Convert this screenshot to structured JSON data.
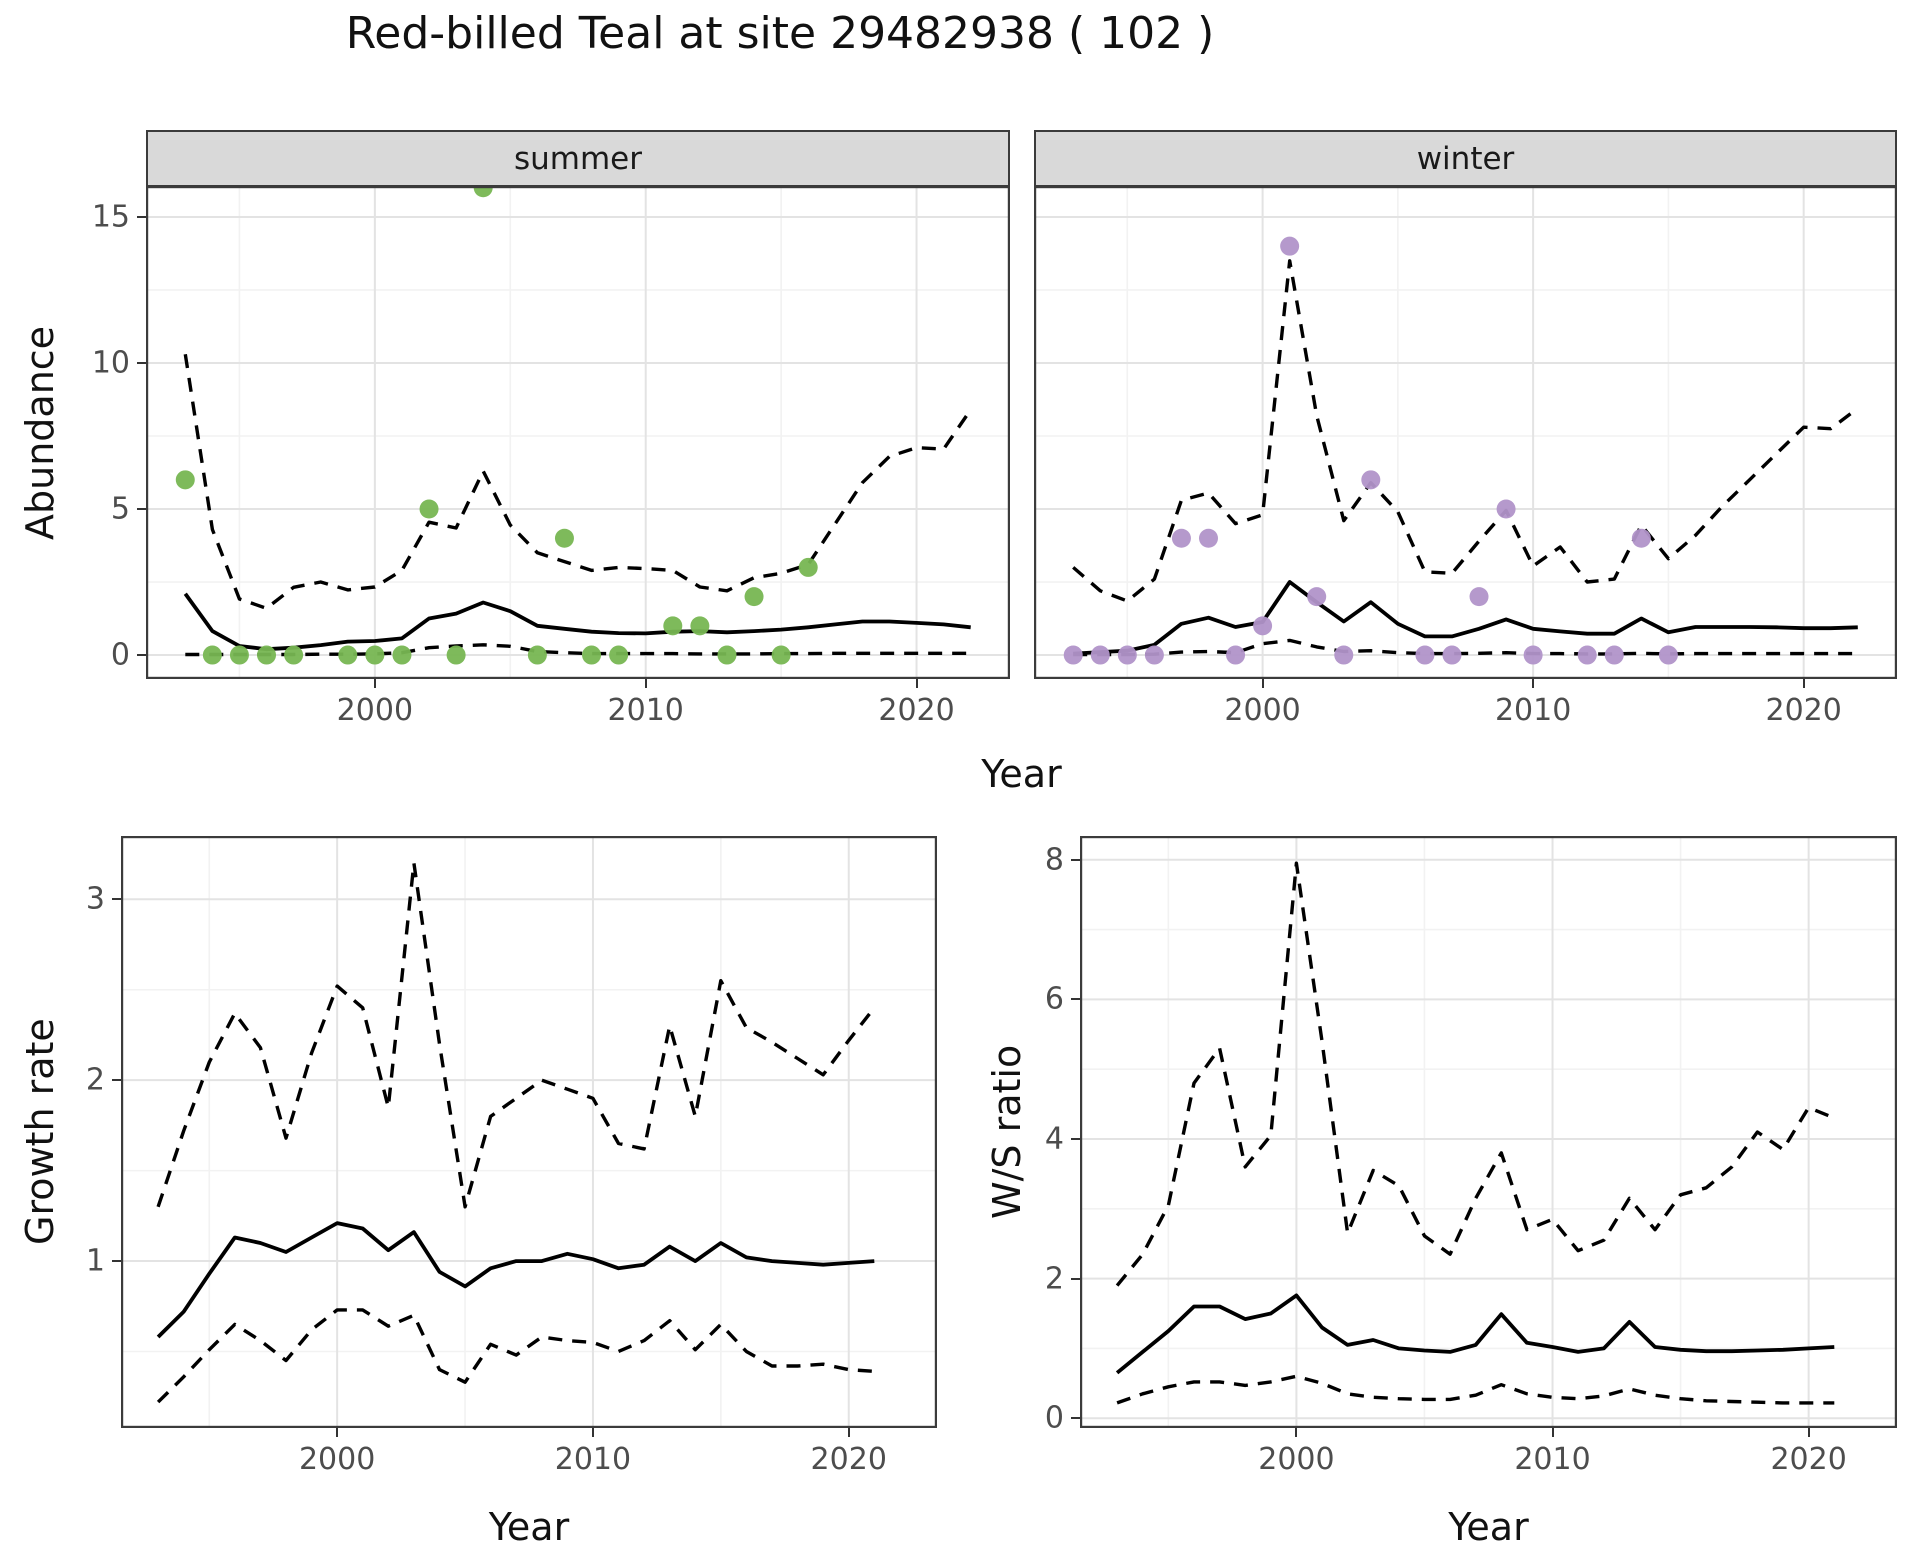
{
  "title": "Red-billed Teal at site 29482938 ( 102 )",
  "axes": {
    "abundance_y_label": "Abundance",
    "growth_y_label": "Growth rate",
    "ws_y_label": "W/S ratio",
    "year_label_top": "Year",
    "year_label_growth": "Year",
    "year_label_ws": "Year"
  },
  "colors": {
    "summer_point": "#77b652",
    "winter_point": "#b194c9",
    "fit_line": "#000000",
    "ci_line": "#000000",
    "strip_bg": "#d9d9d9",
    "grid_major": "#e3e3e3",
    "grid_minor": "#f2f2f2",
    "panel_border": "#3b3b3b",
    "tick_text": "#4d4d4d"
  },
  "chart_data": [
    {
      "id": "summer",
      "type": "line",
      "facet_label": "summer",
      "title": "Abundance - summer facet",
      "xlim": [
        1991.55,
        2023.45
      ],
      "ylim": [
        -0.82,
        16.06
      ],
      "x_major_ticks": [
        2000,
        2010,
        2020
      ],
      "x_minor_ticks": [
        1995,
        2005,
        2015
      ],
      "y_major_ticks": [
        0,
        5,
        10,
        15
      ],
      "y_minor_ticks": [
        2.5,
        7.5,
        12.5
      ],
      "x_tick_labels": [
        "2000",
        "2010",
        "2020"
      ],
      "y_tick_labels": [
        "0",
        "5",
        "10",
        "15"
      ],
      "series": {
        "years": [
          1993,
          1994,
          1995,
          1996,
          1997,
          1998,
          1999,
          2000,
          2001,
          2002,
          2003,
          2004,
          2005,
          2006,
          2007,
          2008,
          2009,
          2010,
          2011,
          2012,
          2013,
          2014,
          2015,
          2016,
          2017,
          2018,
          2019,
          2020,
          2021,
          2022
        ],
        "mean": [
          2.1,
          0.82,
          0.31,
          0.2,
          0.25,
          0.34,
          0.46,
          0.48,
          0.57,
          1.25,
          1.42,
          1.8,
          1.5,
          1.0,
          0.9,
          0.8,
          0.75,
          0.74,
          0.8,
          0.82,
          0.78,
          0.82,
          0.87,
          0.95,
          1.05,
          1.15,
          1.15,
          1.1,
          1.05,
          0.95
        ],
        "upper": [
          10.3,
          4.3,
          1.92,
          1.6,
          2.32,
          2.5,
          2.23,
          2.33,
          2.9,
          4.55,
          4.35,
          6.3,
          4.45,
          3.5,
          3.2,
          2.9,
          3.0,
          2.96,
          2.9,
          2.33,
          2.2,
          2.65,
          2.8,
          3.1,
          4.5,
          5.9,
          6.8,
          7.1,
          7.05,
          8.4
        ],
        "lower": [
          0.02,
          0.02,
          0.02,
          0.02,
          0.02,
          0.03,
          0.03,
          0.04,
          0.08,
          0.25,
          0.31,
          0.35,
          0.3,
          0.12,
          0.08,
          0.05,
          0.05,
          0.05,
          0.05,
          0.04,
          0.04,
          0.04,
          0.05,
          0.05,
          0.06,
          0.06,
          0.06,
          0.06,
          0.06,
          0.06
        ]
      },
      "points": {
        "years": [
          1993,
          1994,
          1995,
          1996,
          1997,
          1999,
          2000,
          2001,
          2002,
          2003,
          2004,
          2006,
          2007,
          2008,
          2009,
          2011,
          2012,
          2013,
          2014,
          2015,
          2016
        ],
        "values": [
          6,
          0,
          0,
          0,
          0,
          0,
          0,
          0,
          5,
          0,
          16,
          0,
          4,
          0,
          0,
          1,
          1,
          0,
          2,
          0,
          3
        ],
        "color_key": "summer_point"
      }
    },
    {
      "id": "winter",
      "type": "line",
      "facet_label": "winter",
      "title": "Abundance - winter facet",
      "xlim": [
        1991.55,
        2023.45
      ],
      "ylim": [
        -0.82,
        16.06
      ],
      "x_major_ticks": [
        2000,
        2010,
        2020
      ],
      "x_minor_ticks": [
        1995,
        2005,
        2015
      ],
      "y_major_ticks": [
        0,
        5,
        10,
        15
      ],
      "y_minor_ticks": [
        2.5,
        7.5,
        12.5
      ],
      "x_tick_labels": [
        "2000",
        "2010",
        "2020"
      ],
      "y_tick_labels": [],
      "series": {
        "years": [
          1993,
          1994,
          1995,
          1996,
          1997,
          1998,
          1999,
          2000,
          2001,
          2002,
          2003,
          2004,
          2005,
          2006,
          2007,
          2008,
          2009,
          2010,
          2011,
          2012,
          2013,
          2014,
          2015,
          2016,
          2017,
          2018,
          2019,
          2020,
          2021,
          2022
        ],
        "mean": [
          0.05,
          0.1,
          0.15,
          0.35,
          1.07,
          1.28,
          0.96,
          1.13,
          2.5,
          1.81,
          1.15,
          1.81,
          1.07,
          0.64,
          0.64,
          0.9,
          1.22,
          0.9,
          0.81,
          0.73,
          0.73,
          1.25,
          0.78,
          0.96,
          0.96,
          0.96,
          0.95,
          0.92,
          0.92,
          0.95
        ],
        "upper": [
          3.0,
          2.2,
          1.85,
          2.6,
          5.3,
          5.55,
          4.5,
          4.8,
          13.5,
          8.2,
          4.6,
          5.9,
          4.9,
          2.85,
          2.8,
          3.9,
          4.95,
          3.05,
          3.7,
          2.5,
          2.6,
          4.45,
          3.3,
          4.1,
          5.1,
          6.0,
          6.9,
          7.8,
          7.75,
          8.45
        ],
        "lower": [
          0.02,
          0.02,
          0.02,
          0.03,
          0.1,
          0.12,
          0.08,
          0.39,
          0.5,
          0.28,
          0.12,
          0.15,
          0.08,
          0.05,
          0.05,
          0.06,
          0.08,
          0.05,
          0.05,
          0.04,
          0.04,
          0.06,
          0.04,
          0.05,
          0.05,
          0.05,
          0.05,
          0.05,
          0.05,
          0.05
        ]
      },
      "points": {
        "years": [
          1993,
          1994,
          1995,
          1996,
          1997,
          1998,
          1999,
          2000,
          2001,
          2002,
          2003,
          2004,
          2006,
          2007,
          2008,
          2009,
          2010,
          2012,
          2013,
          2014,
          2015
        ],
        "values": [
          0,
          0,
          0,
          0,
          4,
          4,
          0,
          1,
          14,
          2,
          0,
          6,
          0,
          0,
          2,
          5,
          0,
          0,
          0,
          4,
          0
        ],
        "color_key": "winter_point"
      }
    },
    {
      "id": "growth",
      "type": "line",
      "facet_label": "",
      "title": "Growth rate",
      "xlim": [
        1991.55,
        2023.45
      ],
      "ylim": [
        0.077,
        3.35
      ],
      "x_major_ticks": [
        2000,
        2010,
        2020
      ],
      "x_minor_ticks": [
        1995,
        2005,
        2015
      ],
      "y_major_ticks": [
        1,
        2,
        3
      ],
      "y_minor_ticks": [
        0.5,
        1.5,
        2.5
      ],
      "x_tick_labels": [
        "2000",
        "2010",
        "2020"
      ],
      "y_tick_labels": [
        "1",
        "2",
        "3"
      ],
      "series": {
        "years": [
          1993,
          1994,
          1995,
          1996,
          1997,
          1998,
          1999,
          2000,
          2001,
          2002,
          2003,
          2004,
          2005,
          2006,
          2007,
          2008,
          2009,
          2010,
          2011,
          2012,
          2013,
          2014,
          2015,
          2016,
          2017,
          2018,
          2019,
          2020,
          2021
        ],
        "mean": [
          0.58,
          0.72,
          0.93,
          1.13,
          1.1,
          1.05,
          1.13,
          1.21,
          1.18,
          1.06,
          1.16,
          0.94,
          0.86,
          0.96,
          1.0,
          1.0,
          1.04,
          1.01,
          0.96,
          0.98,
          1.08,
          1.0,
          1.1,
          1.02,
          1.0,
          0.99,
          0.98,
          0.99,
          1.0
        ],
        "upper": [
          1.3,
          1.72,
          2.1,
          2.37,
          2.18,
          1.68,
          2.15,
          2.52,
          2.4,
          1.85,
          3.2,
          2.2,
          1.3,
          1.8,
          1.9,
          2.0,
          1.95,
          1.9,
          1.65,
          1.62,
          2.3,
          1.8,
          2.55,
          2.29,
          2.21,
          2.12,
          2.03,
          2.22,
          2.4
        ],
        "lower": [
          0.22,
          0.36,
          0.51,
          0.65,
          0.56,
          0.45,
          0.62,
          0.73,
          0.73,
          0.64,
          0.7,
          0.4,
          0.33,
          0.54,
          0.48,
          0.58,
          0.56,
          0.55,
          0.5,
          0.56,
          0.67,
          0.51,
          0.65,
          0.5,
          0.42,
          0.42,
          0.43,
          0.4,
          0.39
        ]
      },
      "points": null
    },
    {
      "id": "ws",
      "type": "line",
      "facet_label": "",
      "title": "W/S ratio",
      "xlim": [
        1991.55,
        2023.45
      ],
      "ylim": [
        -0.14,
        8.34
      ],
      "x_major_ticks": [
        2000,
        2010,
        2020
      ],
      "x_minor_ticks": [
        1995,
        2005,
        2015
      ],
      "y_major_ticks": [
        0,
        2,
        4,
        6,
        8
      ],
      "y_minor_ticks": [
        1,
        3,
        5,
        7
      ],
      "x_tick_labels": [
        "2000",
        "2010",
        "2020"
      ],
      "y_tick_labels": [
        "0",
        "2",
        "4",
        "6",
        "8"
      ],
      "series": {
        "years": [
          1993,
          1994,
          1995,
          1996,
          1997,
          1998,
          1999,
          2000,
          2001,
          2002,
          2003,
          2004,
          2005,
          2006,
          2007,
          2008,
          2009,
          2010,
          2011,
          2012,
          2013,
          2014,
          2015,
          2016,
          2017,
          2018,
          2019,
          2020,
          2021
        ],
        "mean": [
          0.65,
          0.95,
          1.25,
          1.6,
          1.6,
          1.42,
          1.5,
          1.76,
          1.3,
          1.05,
          1.12,
          1.0,
          0.97,
          0.95,
          1.05,
          1.49,
          1.08,
          1.02,
          0.95,
          1.0,
          1.38,
          1.02,
          0.98,
          0.96,
          0.96,
          0.97,
          0.98,
          1.0,
          1.02
        ],
        "upper": [
          1.9,
          2.35,
          3.05,
          4.8,
          5.3,
          3.6,
          4.05,
          7.95,
          5.4,
          2.65,
          3.55,
          3.33,
          2.61,
          2.35,
          3.15,
          3.8,
          2.7,
          2.85,
          2.4,
          2.55,
          3.15,
          2.7,
          3.2,
          3.3,
          3.6,
          4.1,
          3.85,
          4.45,
          4.3
        ],
        "lower": [
          0.22,
          0.35,
          0.45,
          0.52,
          0.52,
          0.47,
          0.52,
          0.6,
          0.5,
          0.35,
          0.3,
          0.28,
          0.27,
          0.27,
          0.33,
          0.48,
          0.35,
          0.3,
          0.28,
          0.32,
          0.42,
          0.33,
          0.28,
          0.25,
          0.24,
          0.23,
          0.22,
          0.22,
          0.22
        ]
      },
      "points": null
    }
  ]
}
